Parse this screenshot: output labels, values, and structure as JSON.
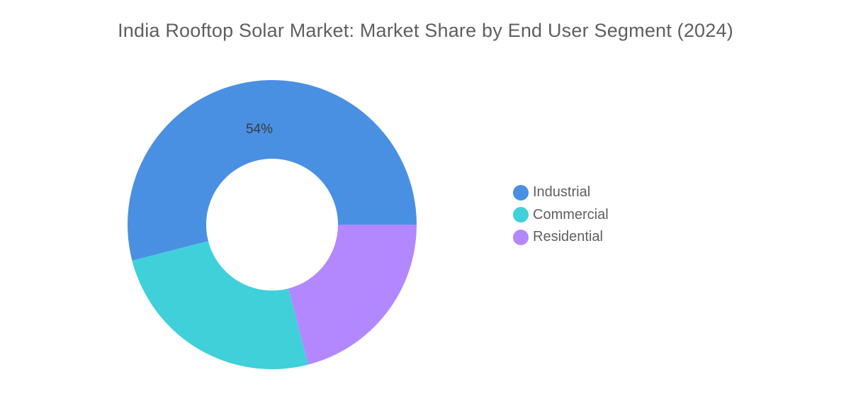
{
  "chart_data": {
    "type": "pie",
    "title": "India Rooftop Solar Market: Market Share by End User Segment (2024)",
    "donut": true,
    "legend_position": "right",
    "categories": [
      "Industrial",
      "Commercial",
      "Residential"
    ],
    "values": [
      54,
      25,
      21
    ],
    "colors": [
      "#4a90e2",
      "#40d0da",
      "#b388ff"
    ],
    "data_labels": [
      "54%",
      "",
      ""
    ]
  }
}
